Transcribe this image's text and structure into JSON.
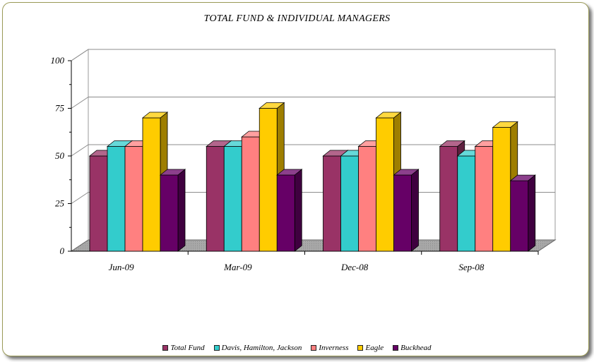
{
  "chart_data": {
    "type": "bar",
    "title": "TOTAL FUND & INDIVIDUAL MANAGERS",
    "xlabel": "",
    "ylabel": "",
    "ylim": [
      0,
      100
    ],
    "yticks": [
      "0",
      "25",
      "50",
      "75",
      "100"
    ],
    "categories": [
      "Jun-09",
      "Mar-09",
      "Dec-08",
      "Sep-08"
    ],
    "series": [
      {
        "name": "Total Fund",
        "color": "#993366",
        "values": [
          50,
          55,
          50,
          55
        ]
      },
      {
        "name": "Davis, Hamilton, Jackson",
        "color": "#33CCCC",
        "values": [
          55,
          55,
          50,
          50
        ]
      },
      {
        "name": "Inverness",
        "color": "#FF8080",
        "values": [
          55,
          60,
          55,
          55
        ]
      },
      {
        "name": "Eagle",
        "color": "#FFCC00",
        "values": [
          70,
          75,
          70,
          65
        ]
      },
      {
        "name": "Buckhead",
        "color": "#660066",
        "values": [
          40,
          40,
          40,
          37
        ]
      }
    ],
    "grid": true,
    "legend": "bottom",
    "style": "3d-clustered-column"
  }
}
